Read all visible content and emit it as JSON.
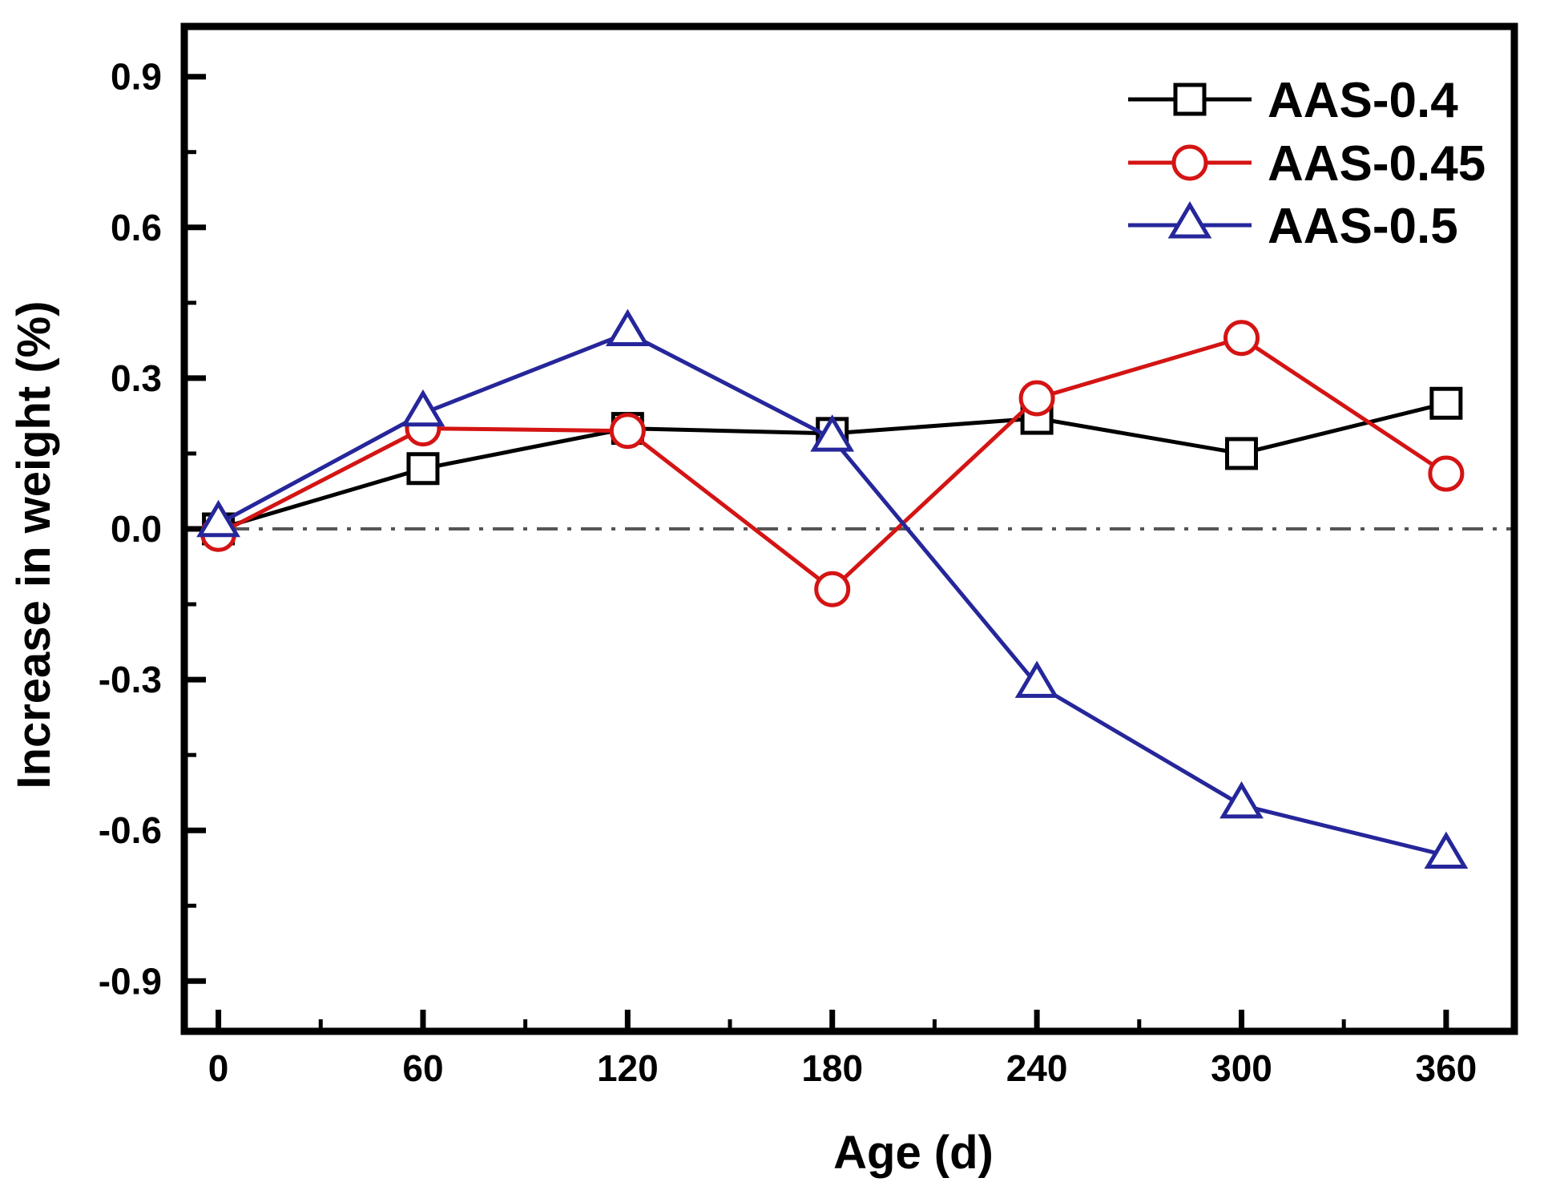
{
  "chart_data": {
    "type": "line",
    "title": "",
    "xlabel": "Age (d)",
    "ylabel": "Increase in weight (%)",
    "x": [
      0,
      60,
      120,
      180,
      240,
      300,
      360
    ],
    "series": [
      {
        "name": "AAS-0.4",
        "color": "#000000",
        "marker": "square",
        "values": [
          0.0,
          0.12,
          0.2,
          0.19,
          0.22,
          0.15,
          0.25
        ]
      },
      {
        "name": "AAS-0.45",
        "color": "#d41414",
        "marker": "circle",
        "values": [
          -0.01,
          0.2,
          0.195,
          -0.12,
          0.26,
          0.38,
          0.11
        ]
      },
      {
        "name": "AAS-0.5",
        "color": "#26269b",
        "marker": "triangle",
        "values": [
          0.01,
          0.23,
          0.39,
          0.18,
          -0.31,
          -0.55,
          -0.65
        ]
      }
    ],
    "axes": {
      "x": {
        "min": -10,
        "max": 380,
        "major_ticks": [
          0,
          60,
          120,
          180,
          240,
          300,
          360
        ],
        "tick_labels": [
          "0",
          "60",
          "120",
          "180",
          "240",
          "300",
          "360"
        ],
        "minor_step": 30
      },
      "y": {
        "min": -1.0,
        "max": 1.0,
        "major_ticks": [
          0.9,
          0.6,
          0.3,
          0.0,
          -0.3,
          -0.6,
          -0.9
        ],
        "tick_labels": [
          "0.9",
          "0.6",
          "0.3",
          "0.0",
          "-0.3",
          "-0.6",
          "-0.9"
        ],
        "minor_step": 0.15
      }
    },
    "reference_line": {
      "y": 0,
      "style": "dash-dot",
      "color": "#555555"
    },
    "legend": {
      "position": "top-right",
      "entries": [
        "AAS-0.4",
        "AAS-0.45",
        "AAS-0.5"
      ]
    },
    "grid": "off",
    "background": "#ffffff"
  }
}
